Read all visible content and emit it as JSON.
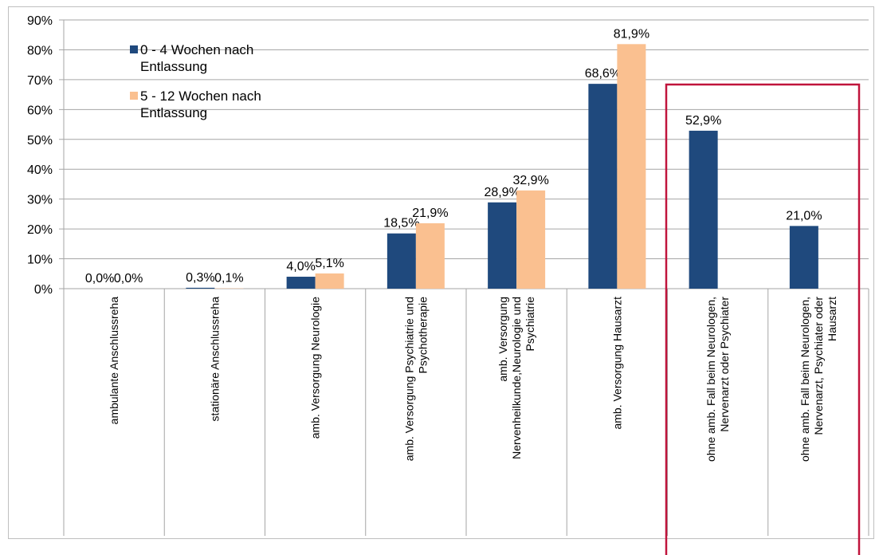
{
  "chart_data": {
    "type": "bar",
    "categories": [
      [
        "ambulante  Anschlussreha"
      ],
      [
        "stationäre Anschlussreha"
      ],
      [
        "amb. Versorgung Neurologie"
      ],
      [
        "amb. Versorgung Psychiatrie und",
        "Psychotherapie"
      ],
      [
        "amb. Versorgung",
        "Nervenheilkunde,Neurologie und",
        "Psychiatrie"
      ],
      [
        "amb. Versorgung Hausarzt"
      ],
      [
        "ohne amb. Fall beim Neurologen,",
        "Nervenarzt oder Psychiater"
      ],
      [
        "ohne amb. Fall beim Neurologen,",
        "Nervenarzt, Psychiater oder",
        "Hausarzt"
      ]
    ],
    "series": [
      {
        "name": "0 - 4 Wochen nach Entlassung",
        "color": "#1f497d",
        "values": [
          0.0,
          0.3,
          4.0,
          18.5,
          28.9,
          68.6,
          52.9,
          21.0
        ],
        "value_labels": [
          "0,0%",
          "0,3%",
          "4,0%",
          "18,5%",
          "28,9%",
          "68,6%",
          "52,9%",
          "21,0%"
        ]
      },
      {
        "name": "5 - 12 Wochen nach Entlassung",
        "color": "#fac090",
        "values": [
          0.0,
          0.1,
          5.1,
          21.9,
          32.9,
          81.9,
          null,
          null
        ],
        "value_labels": [
          "0,0%",
          "0,1%",
          "5,1%",
          "21,9%",
          "32,9%",
          "81,9%",
          null,
          null
        ]
      }
    ],
    "ylim": [
      0,
      90
    ],
    "yticks": [
      {
        "value": 0,
        "label": "0%"
      },
      {
        "value": 10,
        "label": "10%"
      },
      {
        "value": 20,
        "label": "20%"
      },
      {
        "value": 30,
        "label": "30%"
      },
      {
        "value": 40,
        "label": "40%"
      },
      {
        "value": 50,
        "label": "50%"
      },
      {
        "value": 60,
        "label": "60%"
      },
      {
        "value": 70,
        "label": "70%"
      },
      {
        "value": 80,
        "label": "80%"
      },
      {
        "value": 90,
        "label": "90%"
      }
    ],
    "grid": true
  }
}
